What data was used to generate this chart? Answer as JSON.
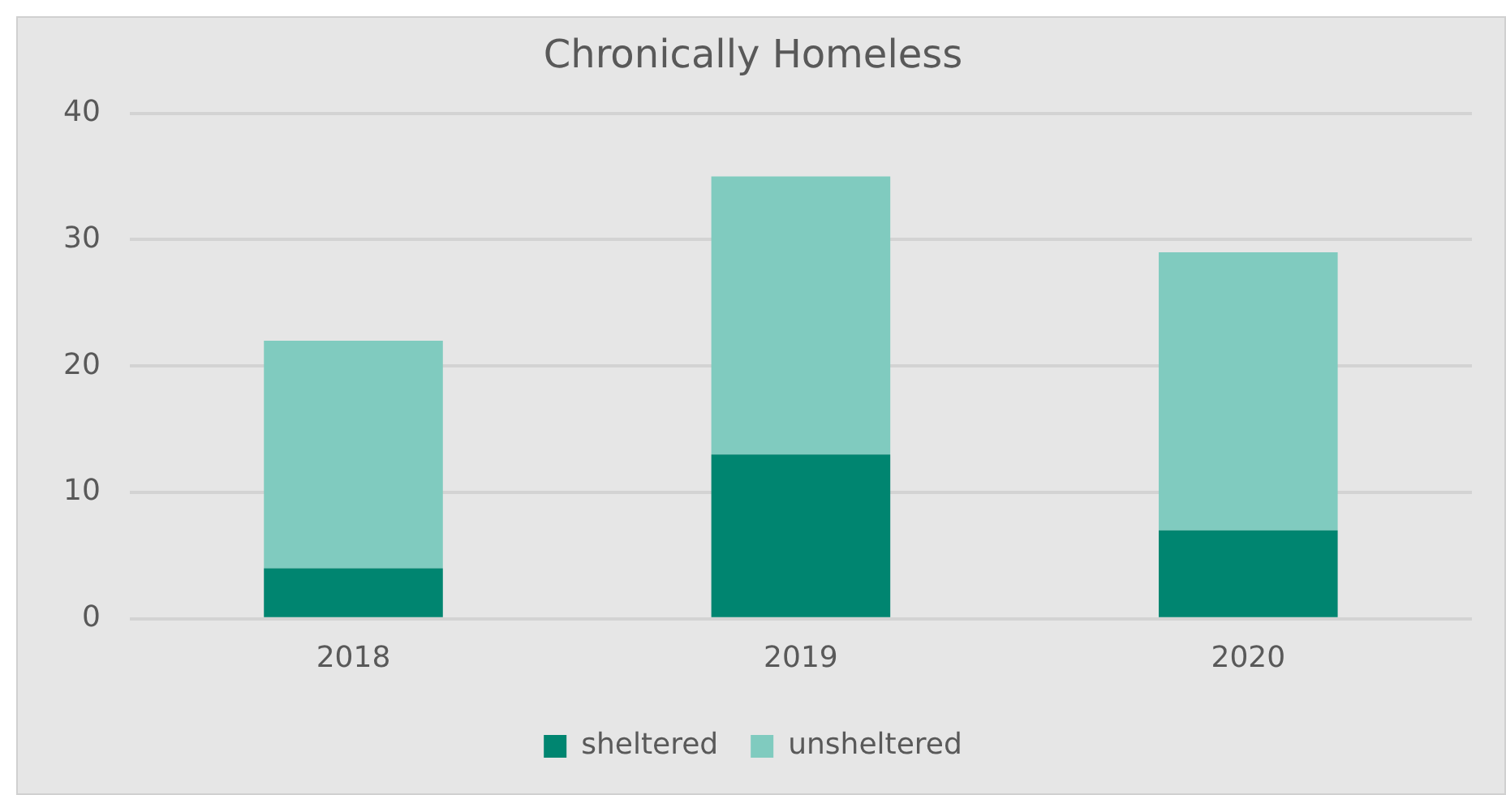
{
  "chart_data": {
    "type": "bar",
    "title": "Chronically Homeless",
    "categories": [
      "2018",
      "2019",
      "2020"
    ],
    "stacked": true,
    "series": [
      {
        "name": "sheltered",
        "color": "#008570",
        "values": [
          4,
          13,
          7
        ]
      },
      {
        "name": "unsheltered",
        "color": "#80cbbf",
        "values": [
          18,
          22,
          22
        ]
      }
    ],
    "ylim": [
      0,
      40
    ],
    "yticks": [
      0,
      10,
      20,
      30,
      40
    ],
    "grid": "y",
    "legend": "bottom"
  }
}
